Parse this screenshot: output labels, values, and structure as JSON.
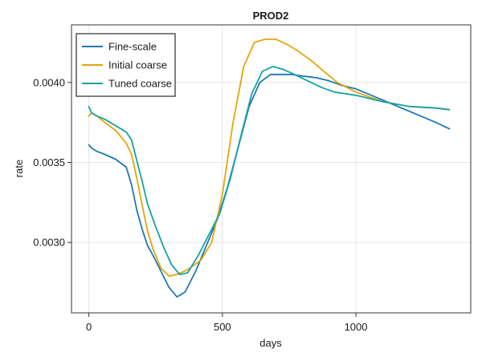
{
  "chart_data": {
    "type": "line",
    "title": "PROD2",
    "xlabel": "days",
    "ylabel": "rate",
    "xlim": [
      -65,
      1430
    ],
    "ylim": [
      0.00256,
      0.00436
    ],
    "xticks": [
      0,
      500,
      1000
    ],
    "xtick_labels": [
      "0",
      "500",
      "1000"
    ],
    "yticks": [
      0.003,
      0.0035,
      0.004
    ],
    "ytick_labels": [
      "0.0030",
      "0.0035",
      "0.0040"
    ],
    "grid": true,
    "legend_position": "top-left",
    "series": [
      {
        "name": "Fine-scale",
        "color": "#1f77b4",
        "x": [
          0,
          10,
          30,
          60,
          100,
          140,
          160,
          180,
          200,
          220,
          240,
          270,
          300,
          330,
          360,
          400,
          440,
          480,
          520,
          560,
          600,
          640,
          680,
          720,
          760,
          800,
          850,
          900,
          950,
          1000,
          1100,
          1200,
          1300,
          1350
        ],
        "y": [
          0.00361,
          0.00359,
          0.00357,
          0.00355,
          0.00352,
          0.00347,
          0.00336,
          0.0032,
          0.00308,
          0.00298,
          0.00292,
          0.00282,
          0.00272,
          0.00266,
          0.00269,
          0.00282,
          0.00298,
          0.00314,
          0.00335,
          0.0036,
          0.00385,
          0.004,
          0.00405,
          0.00405,
          0.00405,
          0.00404,
          0.00403,
          0.00401,
          0.00398,
          0.00396,
          0.00389,
          0.00382,
          0.00375,
          0.00371
        ]
      },
      {
        "name": "Initial coarse",
        "color": "#e5a50a",
        "x": [
          0,
          10,
          30,
          60,
          100,
          140,
          160,
          180,
          200,
          220,
          240,
          270,
          300,
          330,
          370,
          420,
          460,
          500,
          540,
          580,
          620,
          660,
          700,
          740,
          780,
          830,
          880,
          930,
          1000,
          1100,
          1200,
          1300,
          1350
        ],
        "y": [
          0.00379,
          0.00381,
          0.00379,
          0.00375,
          0.0037,
          0.00362,
          0.00355,
          0.0034,
          0.00323,
          0.00307,
          0.00296,
          0.00284,
          0.00279,
          0.0028,
          0.00283,
          0.00289,
          0.003,
          0.0033,
          0.00375,
          0.0041,
          0.00425,
          0.00427,
          0.00427,
          0.00424,
          0.0042,
          0.00414,
          0.00407,
          0.004,
          0.00394,
          0.00388,
          0.00385,
          0.00384,
          0.00383
        ]
      },
      {
        "name": "Tuned coarse",
        "color": "#17a2a0",
        "x": [
          0,
          10,
          30,
          60,
          100,
          140,
          160,
          180,
          200,
          220,
          250,
          280,
          310,
          340,
          370,
          410,
          450,
          490,
          530,
          570,
          610,
          650,
          690,
          730,
          770,
          820,
          870,
          920,
          1000,
          1100,
          1200,
          1300,
          1350
        ],
        "y": [
          0.00385,
          0.00381,
          0.00379,
          0.00377,
          0.00373,
          0.00369,
          0.00364,
          0.00351,
          0.00338,
          0.00324,
          0.0031,
          0.00297,
          0.00286,
          0.0028,
          0.00281,
          0.00292,
          0.00305,
          0.00318,
          0.0034,
          0.00367,
          0.00393,
          0.00407,
          0.0041,
          0.00408,
          0.00405,
          0.00401,
          0.00397,
          0.00394,
          0.00392,
          0.00388,
          0.00385,
          0.00384,
          0.00383
        ]
      }
    ]
  }
}
